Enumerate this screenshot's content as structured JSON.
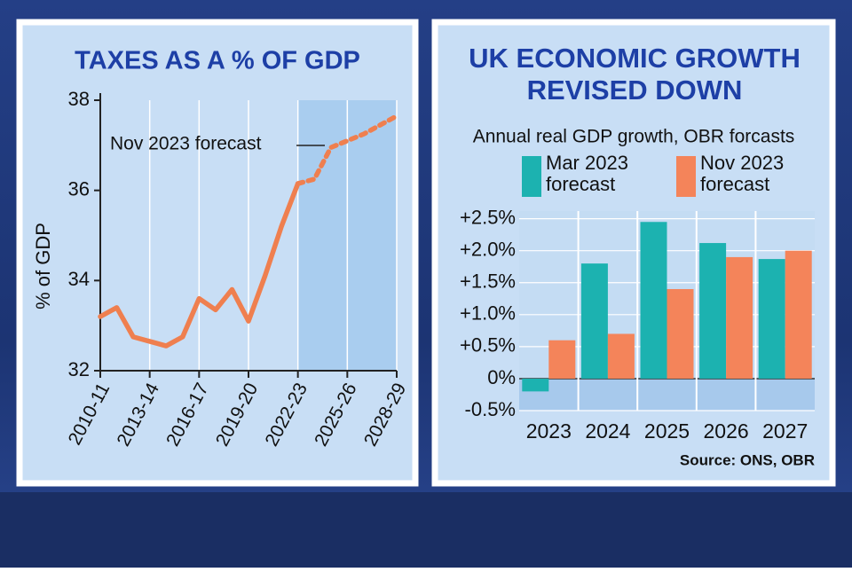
{
  "chart_data": [
    {
      "type": "line",
      "title": "TAXES AS A % OF GDP",
      "y_label": "% of GDP",
      "annotation": "Nov 2023 forecast",
      "categories": [
        "2010-11",
        null,
        null,
        "2013-14",
        null,
        null,
        "2016-17",
        null,
        null,
        "2019-20",
        null,
        null,
        "2022-23",
        null,
        null,
        "2025-26",
        null,
        null,
        "2028-29"
      ],
      "values": [
        33.2,
        33.4,
        32.75,
        32.65,
        32.55,
        32.75,
        33.6,
        33.35,
        33.8,
        33.1,
        34.1,
        35.2,
        36.15,
        null,
        null,
        null,
        null,
        null,
        null
      ],
      "forecast_values": [
        null,
        null,
        null,
        null,
        null,
        null,
        null,
        null,
        null,
        null,
        null,
        null,
        36.15,
        36.25,
        36.95,
        37.1,
        37.25,
        37.45,
        37.65
      ],
      "color": "#ef7f4f",
      "forecast_shade_color": "#a9cdef",
      "ylim": [
        32,
        38
      ],
      "yticks": [
        32,
        34,
        36,
        38
      ]
    },
    {
      "type": "bar",
      "title": "UK ECONOMIC GROWTH REVISED DOWN",
      "subtitle": "Annual real GDP growth, OBR forcasts",
      "source": "Source: ONS, OBR",
      "categories": [
        "2023",
        "2024",
        "2025",
        "2026",
        "2027"
      ],
      "series": [
        {
          "name": "Mar 2023 forecast",
          "color": "#1cb2b0",
          "values": [
            -0.2,
            1.8,
            2.45,
            2.12,
            1.87
          ]
        },
        {
          "name": "Nov 2023 forecast",
          "color": "#f4845a",
          "values": [
            0.6,
            0.7,
            1.4,
            1.9,
            2.0
          ]
        }
      ],
      "ylim": [
        -0.5,
        2.62
      ],
      "yticks": [
        {
          "value": -0.5,
          "label": "-0.5%"
        },
        {
          "value": 0,
          "label": "0%"
        },
        {
          "value": 0.5,
          "label": "+0.5%"
        },
        {
          "value": 1,
          "label": "+1.0%"
        },
        {
          "value": 1.5,
          "label": "+1.5%"
        },
        {
          "value": 2,
          "label": "+2.0%"
        },
        {
          "value": 2.5,
          "label": "+2.5%"
        }
      ],
      "grid": true
    }
  ]
}
